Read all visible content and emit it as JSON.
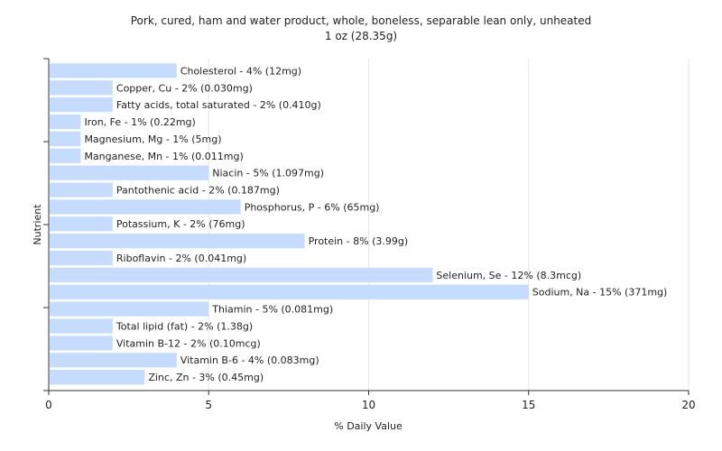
{
  "chart_data": {
    "type": "bar",
    "orientation": "horizontal",
    "title": "Pork, cured, ham and water product, whole, boneless, separable lean only, unheated",
    "subtitle": "1 oz (28.35g)",
    "xlabel": "% Daily Value",
    "ylabel": "Nutrient",
    "xlim": [
      0,
      20
    ],
    "xticks": [
      0,
      5,
      10,
      15,
      20
    ],
    "grid": true,
    "bar_color": "#c6dcff",
    "categories": [
      "Cholesterol",
      "Copper, Cu",
      "Fatty acids, total saturated",
      "Iron, Fe",
      "Magnesium, Mg",
      "Manganese, Mn",
      "Niacin",
      "Pantothenic acid",
      "Phosphorus, P",
      "Potassium, K",
      "Protein",
      "Riboflavin",
      "Selenium, Se",
      "Sodium, Na",
      "Thiamin",
      "Total lipid (fat)",
      "Vitamin B-12",
      "Vitamin B-6",
      "Zinc, Zn"
    ],
    "values": [
      4,
      2,
      2,
      1,
      1,
      1,
      5,
      2,
      6,
      2,
      8,
      2,
      12,
      15,
      5,
      2,
      2,
      4,
      3
    ],
    "labels": [
      "Cholesterol - 4% (12mg)",
      "Copper, Cu - 2% (0.030mg)",
      "Fatty acids, total saturated - 2% (0.410g)",
      "Iron, Fe - 1% (0.22mg)",
      "Magnesium, Mg - 1% (5mg)",
      "Manganese, Mn - 1% (0.011mg)",
      "Niacin - 5% (1.097mg)",
      "Pantothenic acid - 2% (0.187mg)",
      "Phosphorus, P - 6% (65mg)",
      "Potassium, K - 2% (76mg)",
      "Protein - 8% (3.99g)",
      "Riboflavin - 2% (0.041mg)",
      "Selenium, Se - 12% (8.3mcg)",
      "Sodium, Na - 15% (371mg)",
      "Thiamin - 5% (0.081mg)",
      "Total lipid (fat) - 2% (1.38g)",
      "Vitamin B-12 - 2% (0.10mcg)",
      "Vitamin B-6 - 4% (0.083mg)",
      "Zinc, Zn - 3% (0.45mg)"
    ]
  }
}
